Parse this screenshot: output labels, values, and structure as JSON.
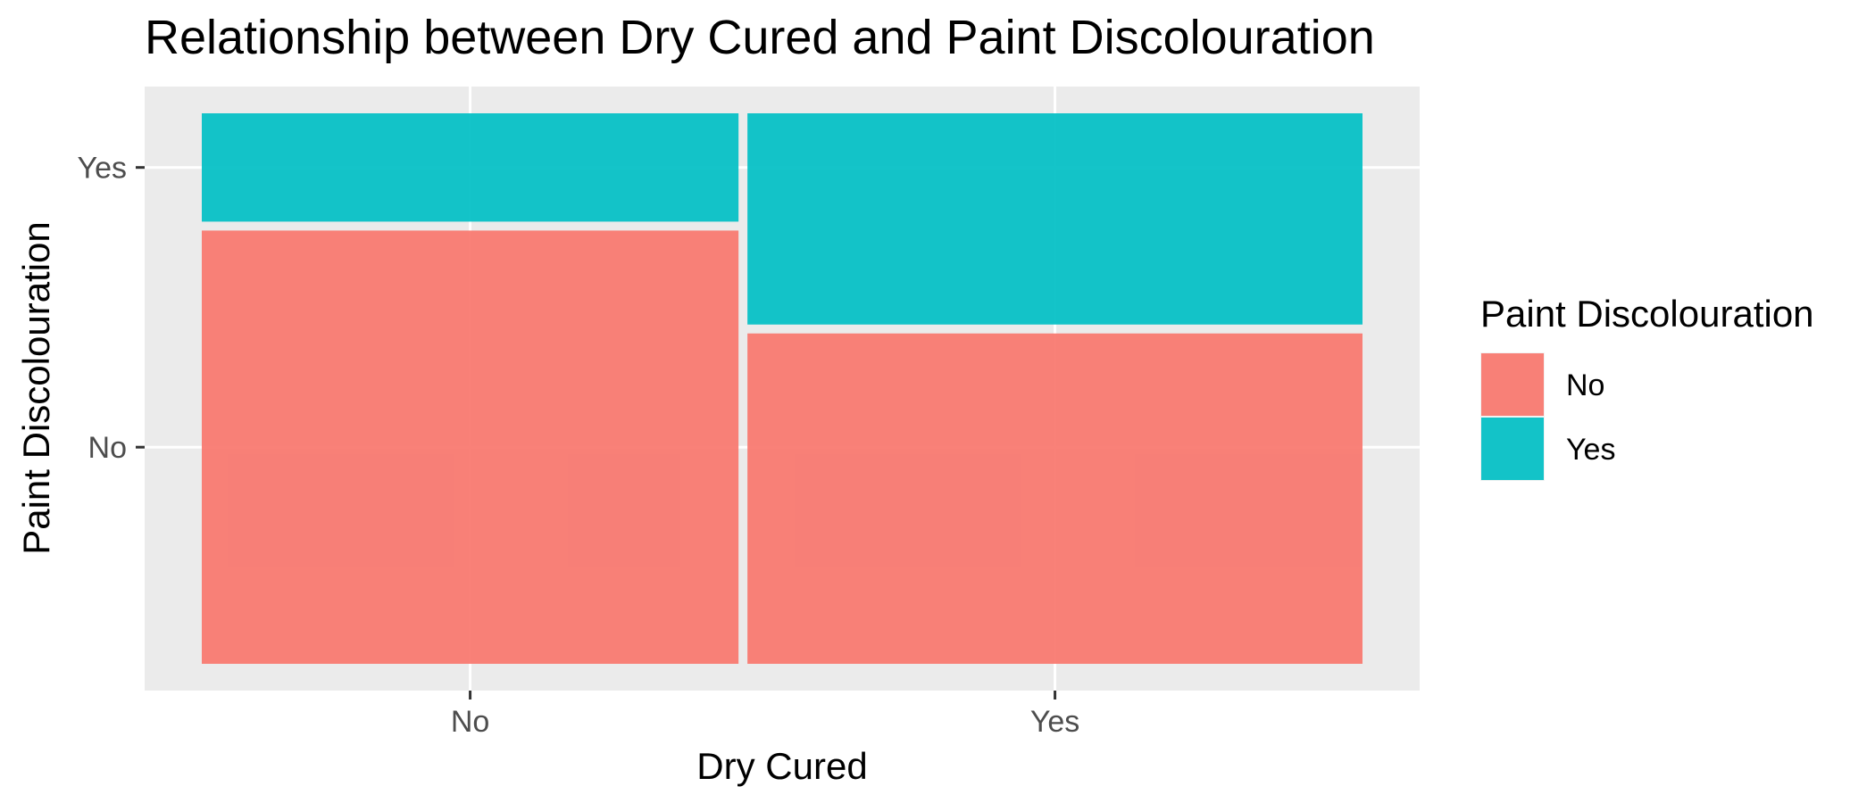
{
  "chart_data": {
    "type": "mosaic",
    "title": "Relationship between Dry Cured and Paint Discolouration",
    "xlabel": "Dry Cured",
    "ylabel": "Paint Discolouration",
    "categories": [
      "No",
      "Yes"
    ],
    "column_widths": [
      0.466,
      0.534
    ],
    "series": [
      {
        "name": "No",
        "values": [
          0.8,
          0.61
        ],
        "color": "#F8766D"
      },
      {
        "name": "Yes",
        "values": [
          0.2,
          0.39
        ],
        "color": "#00BFC4"
      }
    ],
    "y_tick_labels": [
      "No",
      "Yes"
    ],
    "legend": {
      "title": "Paint Discolouration",
      "position": "right",
      "entries": [
        "No",
        "Yes"
      ]
    },
    "grid": true,
    "panel_background": "#EBEBEB"
  }
}
